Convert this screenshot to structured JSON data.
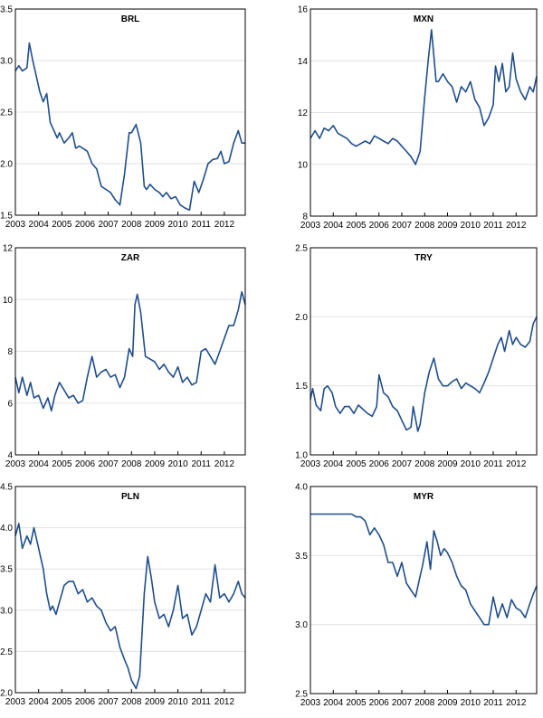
{
  "line_color": "#1f4e8c",
  "grid_color": "#e2e2e2",
  "chart_data": [
    {
      "type": "line",
      "title": "BRL",
      "xlim": [
        2003,
        2012.9
      ],
      "ylim": [
        1.5,
        3.5
      ],
      "yticks": [
        "1.5",
        "2.0",
        "2.5",
        "3.0",
        "3.5"
      ],
      "xticks": [
        "2003",
        "2004",
        "2005",
        "2006",
        "2007",
        "2008",
        "2009",
        "2010",
        "2011",
        "2012"
      ],
      "grid": true,
      "x": [
        2003.0,
        2003.15,
        2003.3,
        2003.5,
        2003.6,
        2003.75,
        2003.9,
        2004.05,
        2004.2,
        2004.35,
        2004.5,
        2004.6,
        2004.8,
        2004.9,
        2005.1,
        2005.3,
        2005.45,
        2005.6,
        2005.75,
        2005.9,
        2006.1,
        2006.3,
        2006.5,
        2006.7,
        2006.9,
        2007.1,
        2007.3,
        2007.5,
        2007.7,
        2007.9,
        2008.0,
        2008.2,
        2008.4,
        2008.55,
        2008.65,
        2008.8,
        2009.0,
        2009.2,
        2009.35,
        2009.5,
        2009.7,
        2009.9,
        2010.1,
        2010.3,
        2010.5,
        2010.7,
        2010.9,
        2011.1,
        2011.3,
        2011.5,
        2011.7,
        2011.85,
        2012.0,
        2012.2,
        2012.4,
        2012.6,
        2012.75,
        2012.9
      ],
      "values": [
        2.9,
        2.95,
        2.9,
        2.93,
        3.17,
        3.0,
        2.85,
        2.7,
        2.6,
        2.68,
        2.4,
        2.35,
        2.25,
        2.3,
        2.2,
        2.25,
        2.3,
        2.15,
        2.17,
        2.15,
        2.12,
        2.0,
        1.95,
        1.78,
        1.75,
        1.72,
        1.65,
        1.6,
        1.9,
        2.3,
        2.3,
        2.38,
        2.2,
        1.78,
        1.75,
        1.8,
        1.75,
        1.72,
        1.68,
        1.72,
        1.66,
        1.68,
        1.6,
        1.57,
        1.55,
        1.83,
        1.72,
        1.85,
        2.0,
        2.04,
        2.05,
        2.12,
        2.0,
        2.02,
        2.2,
        2.32,
        2.2,
        2.2
      ]
    },
    {
      "type": "line",
      "title": "MXN",
      "xlim": [
        2003,
        2012.9
      ],
      "ylim": [
        8,
        16
      ],
      "yticks": [
        "8",
        "10",
        "12",
        "14",
        "16"
      ],
      "xticks": [
        "2003",
        "2004",
        "2005",
        "2006",
        "2007",
        "2008",
        "2009",
        "2010",
        "2011",
        "2012"
      ],
      "grid": true,
      "x": [
        2003.0,
        2003.2,
        2003.4,
        2003.6,
        2003.8,
        2004.0,
        2004.2,
        2004.4,
        2004.6,
        2004.8,
        2005.0,
        2005.2,
        2005.4,
        2005.6,
        2005.8,
        2006.0,
        2006.2,
        2006.4,
        2006.6,
        2006.8,
        2007.0,
        2007.2,
        2007.4,
        2007.6,
        2007.8,
        2008.0,
        2008.15,
        2008.3,
        2008.5,
        2008.6,
        2008.8,
        2009.0,
        2009.2,
        2009.4,
        2009.6,
        2009.8,
        2010.0,
        2010.2,
        2010.4,
        2010.6,
        2010.8,
        2011.0,
        2011.1,
        2011.25,
        2011.4,
        2011.55,
        2011.7,
        2011.85,
        2012.0,
        2012.2,
        2012.4,
        2012.6,
        2012.75,
        2012.9
      ],
      "values": [
        11.0,
        11.3,
        11.0,
        11.4,
        11.3,
        11.5,
        11.2,
        11.1,
        11.0,
        10.8,
        10.7,
        10.8,
        10.9,
        10.8,
        11.1,
        11.0,
        10.9,
        10.8,
        11.0,
        10.9,
        10.7,
        10.5,
        10.3,
        10.0,
        10.5,
        12.6,
        14.0,
        15.2,
        13.2,
        13.2,
        13.5,
        13.2,
        13.0,
        12.4,
        13.0,
        12.8,
        13.2,
        12.5,
        12.2,
        11.5,
        11.8,
        12.3,
        13.8,
        13.2,
        13.9,
        12.8,
        13.0,
        14.3,
        13.3,
        12.8,
        12.5,
        13.0,
        12.8,
        13.4
      ]
    },
    {
      "type": "line",
      "title": "ZAR",
      "xlim": [
        2003,
        2012.9
      ],
      "ylim": [
        4,
        12
      ],
      "yticks": [
        "4",
        "6",
        "8",
        "10",
        "12"
      ],
      "xticks": [
        "2003",
        "2004",
        "2005",
        "2006",
        "2007",
        "2008",
        "2009",
        "2010",
        "2011",
        "2012"
      ],
      "grid": true,
      "x": [
        2003.0,
        2003.15,
        2003.3,
        2003.5,
        2003.65,
        2003.8,
        2004.0,
        2004.2,
        2004.4,
        2004.55,
        2004.7,
        2004.9,
        2005.1,
        2005.3,
        2005.5,
        2005.7,
        2005.9,
        2006.1,
        2006.3,
        2006.5,
        2006.7,
        2006.9,
        2007.1,
        2007.3,
        2007.5,
        2007.7,
        2007.9,
        2008.05,
        2008.15,
        2008.25,
        2008.4,
        2008.6,
        2008.8,
        2009.0,
        2009.2,
        2009.4,
        2009.6,
        2009.8,
        2010.0,
        2010.2,
        2010.4,
        2010.6,
        2010.8,
        2011.0,
        2011.2,
        2011.4,
        2011.6,
        2011.8,
        2012.0,
        2012.2,
        2012.4,
        2012.6,
        2012.75,
        2012.9
      ],
      "values": [
        7.0,
        6.4,
        7.0,
        6.3,
        6.8,
        6.2,
        6.3,
        5.8,
        6.2,
        5.7,
        6.3,
        6.8,
        6.5,
        6.2,
        6.3,
        6.0,
        6.1,
        7.0,
        7.8,
        7.0,
        7.2,
        7.3,
        7.0,
        7.1,
        6.6,
        7.0,
        8.1,
        7.8,
        9.8,
        10.2,
        9.5,
        7.8,
        7.7,
        7.6,
        7.3,
        7.5,
        7.2,
        7.0,
        7.4,
        6.8,
        7.0,
        6.7,
        6.8,
        8.0,
        8.1,
        7.8,
        7.5,
        8.0,
        8.5,
        9.0,
        9.0,
        9.6,
        10.3,
        9.8
      ]
    },
    {
      "type": "line",
      "title": "TRY",
      "xlim": [
        2003,
        2012.9
      ],
      "ylim": [
        1.0,
        2.5
      ],
      "yticks": [
        "1.0",
        "1.5",
        "2.0",
        "2.5"
      ],
      "xticks": [
        "2003",
        "2004",
        "2005",
        "2006",
        "2007",
        "2008",
        "2009",
        "2010",
        "2011",
        "2012"
      ],
      "grid": true,
      "x": [
        2003.0,
        2003.1,
        2003.25,
        2003.45,
        2003.6,
        2003.75,
        2003.95,
        2004.1,
        2004.3,
        2004.5,
        2004.7,
        2004.9,
        2005.1,
        2005.3,
        2005.5,
        2005.7,
        2005.9,
        2006.0,
        2006.2,
        2006.4,
        2006.6,
        2006.8,
        2007.0,
        2007.2,
        2007.4,
        2007.5,
        2007.7,
        2007.8,
        2008.0,
        2008.2,
        2008.4,
        2008.6,
        2008.8,
        2009.0,
        2009.2,
        2009.4,
        2009.6,
        2009.8,
        2010.0,
        2010.2,
        2010.4,
        2010.6,
        2010.8,
        2011.0,
        2011.2,
        2011.35,
        2011.5,
        2011.7,
        2011.85,
        2012.0,
        2012.2,
        2012.4,
        2012.6,
        2012.75,
        2012.9
      ],
      "values": [
        1.4,
        1.48,
        1.36,
        1.32,
        1.48,
        1.5,
        1.45,
        1.35,
        1.3,
        1.35,
        1.35,
        1.3,
        1.36,
        1.33,
        1.3,
        1.28,
        1.35,
        1.58,
        1.45,
        1.42,
        1.35,
        1.32,
        1.25,
        1.18,
        1.2,
        1.35,
        1.17,
        1.22,
        1.45,
        1.6,
        1.7,
        1.55,
        1.5,
        1.5,
        1.53,
        1.55,
        1.48,
        1.52,
        1.5,
        1.48,
        1.45,
        1.52,
        1.6,
        1.7,
        1.8,
        1.85,
        1.75,
        1.9,
        1.8,
        1.85,
        1.8,
        1.78,
        1.82,
        1.95,
        2.0
      ]
    },
    {
      "type": "line",
      "title": "PLN",
      "xlim": [
        2003,
        2012.9
      ],
      "ylim": [
        2.0,
        4.5
      ],
      "yticks": [
        "2.0",
        "2.5",
        "3.0",
        "3.5",
        "4.0",
        "4.5"
      ],
      "xticks": [
        "2003",
        "2004",
        "2005",
        "2006",
        "2007",
        "2008",
        "2009",
        "2010",
        "2011",
        "2012"
      ],
      "grid": true,
      "x": [
        2003.0,
        2003.15,
        2003.3,
        2003.5,
        2003.65,
        2003.8,
        2004.0,
        2004.2,
        2004.35,
        2004.5,
        2004.6,
        2004.75,
        2004.9,
        2005.1,
        2005.3,
        2005.5,
        2005.7,
        2005.9,
        2006.1,
        2006.3,
        2006.5,
        2006.7,
        2006.9,
        2007.1,
        2007.3,
        2007.5,
        2007.7,
        2007.85,
        2008.0,
        2008.2,
        2008.35,
        2008.55,
        2008.7,
        2008.85,
        2009.0,
        2009.2,
        2009.4,
        2009.6,
        2009.8,
        2010.0,
        2010.2,
        2010.4,
        2010.6,
        2010.8,
        2011.0,
        2011.2,
        2011.4,
        2011.6,
        2011.8,
        2012.0,
        2012.2,
        2012.4,
        2012.6,
        2012.75,
        2012.9
      ],
      "values": [
        3.9,
        4.05,
        3.75,
        3.9,
        3.8,
        4.0,
        3.75,
        3.5,
        3.2,
        3.0,
        3.05,
        2.95,
        3.1,
        3.3,
        3.35,
        3.35,
        3.2,
        3.25,
        3.1,
        3.15,
        3.05,
        3.0,
        2.85,
        2.75,
        2.8,
        2.55,
        2.4,
        2.3,
        2.15,
        2.05,
        2.2,
        3.2,
        3.65,
        3.4,
        3.1,
        2.9,
        2.95,
        2.8,
        3.0,
        3.3,
        2.9,
        2.95,
        2.7,
        2.8,
        3.0,
        3.2,
        3.1,
        3.55,
        3.15,
        3.2,
        3.1,
        3.2,
        3.35,
        3.2,
        3.15
      ]
    },
    {
      "type": "line",
      "title": "MYR",
      "xlim": [
        2003,
        2012.9
      ],
      "ylim": [
        2.5,
        4.0
      ],
      "yticks": [
        "2.5",
        "3.0",
        "3.5",
        "4.0"
      ],
      "xticks": [
        "2003",
        "2004",
        "2005",
        "2006",
        "2007",
        "2008",
        "2009",
        "2010",
        "2011",
        "2012"
      ],
      "grid": true,
      "x": [
        2003.0,
        2003.5,
        2004.0,
        2004.5,
        2004.8,
        2005.0,
        2005.2,
        2005.4,
        2005.6,
        2005.8,
        2006.0,
        2006.2,
        2006.4,
        2006.6,
        2006.8,
        2007.0,
        2007.2,
        2007.4,
        2007.6,
        2007.8,
        2007.9,
        2008.1,
        2008.25,
        2008.4,
        2008.55,
        2008.7,
        2008.85,
        2009.0,
        2009.2,
        2009.4,
        2009.6,
        2009.8,
        2010.0,
        2010.2,
        2010.4,
        2010.6,
        2010.8,
        2011.0,
        2011.2,
        2011.4,
        2011.6,
        2011.8,
        2012.0,
        2012.2,
        2012.4,
        2012.6,
        2012.75,
        2012.9
      ],
      "values": [
        3.8,
        3.8,
        3.8,
        3.8,
        3.8,
        3.78,
        3.78,
        3.75,
        3.65,
        3.7,
        3.65,
        3.58,
        3.45,
        3.45,
        3.35,
        3.45,
        3.3,
        3.25,
        3.2,
        3.35,
        3.42,
        3.6,
        3.4,
        3.68,
        3.6,
        3.5,
        3.55,
        3.52,
        3.45,
        3.35,
        3.28,
        3.25,
        3.15,
        3.1,
        3.05,
        3.0,
        3.0,
        3.2,
        3.05,
        3.15,
        3.05,
        3.18,
        3.12,
        3.1,
        3.05,
        3.15,
        3.22,
        3.28
      ]
    }
  ]
}
